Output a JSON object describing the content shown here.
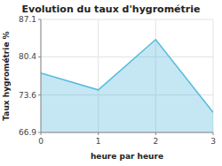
{
  "chart_data": {
    "type": "area",
    "title": "Evolution du taux d'hygrométrie",
    "xlabel": "heure par heure",
    "ylabel": "Taux hygrométrie %",
    "x": [
      0,
      1,
      2,
      3
    ],
    "values": [
      77.5,
      74.5,
      83.5,
      70.5
    ],
    "color": "#55bbdd",
    "xlim": [
      0,
      3
    ],
    "ylim": [
      66.9,
      87.1
    ],
    "xticks": [
      0,
      1,
      2,
      3
    ],
    "yticks": [
      66.9,
      73.6,
      80.4,
      87.1
    ],
    "grid": true
  }
}
